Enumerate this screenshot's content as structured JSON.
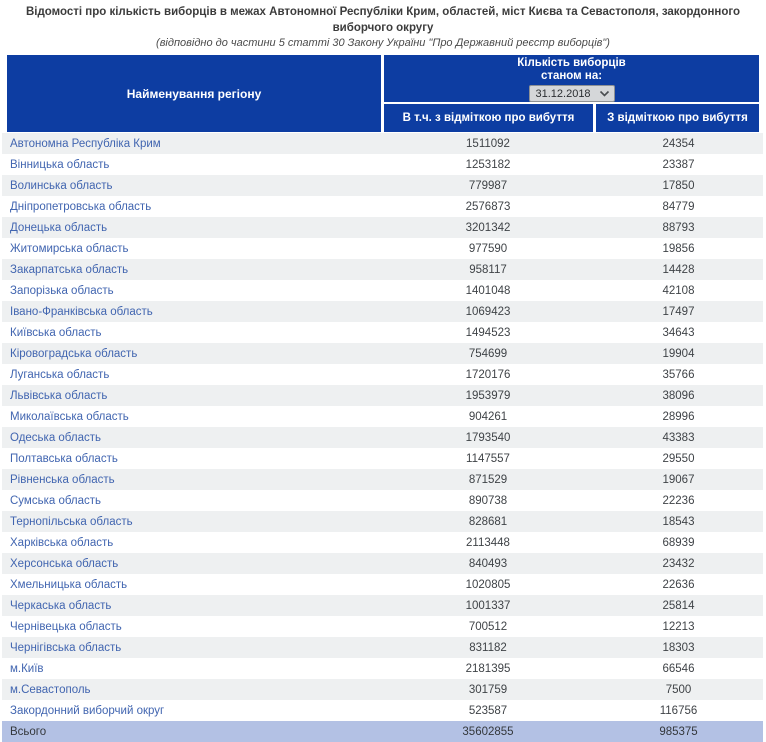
{
  "title": {
    "line1": "Відомості про кількість виборців в межах Автономної Республіки Крим, областей, міст Києва та Севастополя, закордонного виборчого округу",
    "line2": "(відповідно до частини 5 статті 30 Закону України \"Про Державний реєстр виборців\")"
  },
  "table": {
    "header": {
      "region_column": "Найменування регіону",
      "count_title_line1": "Кількість виборців",
      "count_title_line2": "станом на:",
      "date_value": "31.12.2018",
      "subcol_in_total": "В т.ч. з відміткою про вибуття",
      "subcol_departed": "З відміткою про вибуття"
    },
    "rows": [
      {
        "region": "Автономна Республіка Крим",
        "voters": "1511092",
        "departed": "24354"
      },
      {
        "region": "Вінницька область",
        "voters": "1253182",
        "departed": "23387"
      },
      {
        "region": "Волинська область",
        "voters": "779987",
        "departed": "17850"
      },
      {
        "region": "Дніпропетровська область",
        "voters": "2576873",
        "departed": "84779"
      },
      {
        "region": "Донецька область",
        "voters": "3201342",
        "departed": "88793"
      },
      {
        "region": "Житомирська область",
        "voters": "977590",
        "departed": "19856"
      },
      {
        "region": "Закарпатська область",
        "voters": "958117",
        "departed": "14428"
      },
      {
        "region": "Запорізька область",
        "voters": "1401048",
        "departed": "42108"
      },
      {
        "region": "Івано-Франківська область",
        "voters": "1069423",
        "departed": "17497"
      },
      {
        "region": "Київська область",
        "voters": "1494523",
        "departed": "34643"
      },
      {
        "region": "Кіровоградська область",
        "voters": "754699",
        "departed": "19904"
      },
      {
        "region": "Луганська область",
        "voters": "1720176",
        "departed": "35766"
      },
      {
        "region": "Львівська область",
        "voters": "1953979",
        "departed": "38096"
      },
      {
        "region": "Миколаївська область",
        "voters": "904261",
        "departed": "28996"
      },
      {
        "region": "Одеська область",
        "voters": "1793540",
        "departed": "43383"
      },
      {
        "region": "Полтавська область",
        "voters": "1147557",
        "departed": "29550"
      },
      {
        "region": "Рівненська область",
        "voters": "871529",
        "departed": "19067"
      },
      {
        "region": "Сумська область",
        "voters": "890738",
        "departed": "22236"
      },
      {
        "region": "Тернопільська область",
        "voters": "828681",
        "departed": "18543"
      },
      {
        "region": "Харківська область",
        "voters": "2113448",
        "departed": "68939"
      },
      {
        "region": "Херсонська область",
        "voters": "840493",
        "departed": "23432"
      },
      {
        "region": "Хмельницька область",
        "voters": "1020805",
        "departed": "22636"
      },
      {
        "region": "Черкаська область",
        "voters": "1001337",
        "departed": "25814"
      },
      {
        "region": "Чернівецька область",
        "voters": "700512",
        "departed": "12213"
      },
      {
        "region": "Чернігівська область",
        "voters": "831182",
        "departed": "18303"
      },
      {
        "region": "м.Київ",
        "voters": "2181395",
        "departed": "66546"
      },
      {
        "region": "м.Севастополь",
        "voters": "301759",
        "departed": "7500"
      },
      {
        "region": "Закордонний виборчий округ",
        "voters": "523587",
        "departed": "116756"
      }
    ],
    "total_row": {
      "label": "Всього",
      "voters": "35602855",
      "departed": "985375"
    }
  },
  "colors": {
    "header_blue": "#0d3da2",
    "row_stripe": "#eef0f1",
    "total_row_bg": "#b3c1e4",
    "link_blue": "#4165b0",
    "number_text": "#3f4347"
  }
}
